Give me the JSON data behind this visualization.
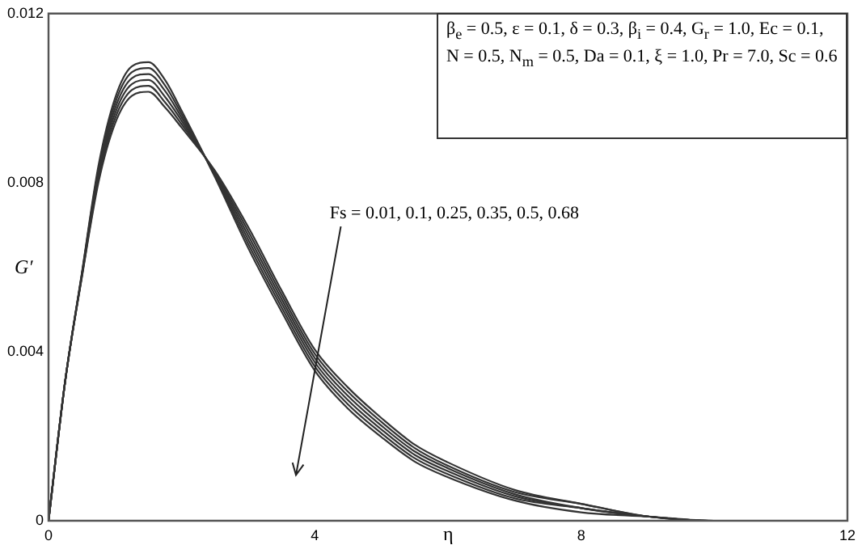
{
  "chart_data": {
    "type": "line",
    "xlabel": "η",
    "ylabel": "G′",
    "xlim": [
      0,
      12
    ],
    "xticks": [
      0,
      4,
      8,
      12
    ],
    "ylim": [
      0,
      0.012
    ],
    "yticks": [
      0,
      0.004,
      0.008,
      0.012
    ],
    "grid": false,
    "legend": false,
    "marker": "none",
    "line_style": "solid",
    "series": [
      {
        "color": "#333333",
        "x": [
          0,
          0.25,
          0.5,
          0.75,
          1,
          1.25,
          1.5,
          1.75,
          2,
          2.5,
          3,
          3.5,
          4,
          4.5,
          5,
          5.5,
          6,
          7,
          8,
          9,
          10,
          11.5
        ],
        "values": [
          0,
          0.0033,
          0.00575,
          0.008,
          0.0094,
          0.01005,
          0.01015,
          0.00978,
          0.0093,
          0.00828,
          0.00695,
          0.00545,
          0.00405,
          0.00315,
          0.00243,
          0.0018,
          0.00138,
          0.00073,
          0.0004,
          0.0001,
          0,
          0
        ]
      },
      {
        "color": "#333333",
        "x": [
          0,
          0.25,
          0.5,
          0.75,
          1,
          1.25,
          1.5,
          1.75,
          2,
          2.5,
          3,
          3.5,
          4,
          4.5,
          5,
          5.5,
          6,
          7,
          8,
          9,
          10,
          11.4
        ],
        "values": [
          0,
          0.0033,
          0.00577,
          0.00808,
          0.00952,
          0.01019,
          0.01029,
          0.0099,
          0.00938,
          0.00825,
          0.00685,
          0.00535,
          0.00395,
          0.00305,
          0.00234,
          0.00172,
          0.0013,
          0.00068,
          0.0004,
          0.0001,
          0,
          0
        ]
      },
      {
        "color": "#333333",
        "x": [
          0,
          0.25,
          0.5,
          0.75,
          1,
          1.25,
          1.5,
          1.75,
          2,
          2.5,
          3,
          3.5,
          4,
          4.5,
          5,
          5.5,
          6,
          7,
          8,
          9,
          10,
          11.3
        ],
        "values": [
          0,
          0.0033,
          0.00579,
          0.00816,
          0.00964,
          0.01033,
          0.01043,
          0.01003,
          0.00946,
          0.00822,
          0.00675,
          0.00525,
          0.00385,
          0.00295,
          0.00225,
          0.00164,
          0.00124,
          0.00063,
          0.0003,
          0.0001,
          0,
          0
        ]
      },
      {
        "color": "#333333",
        "x": [
          0,
          0.25,
          0.5,
          0.75,
          1,
          1.25,
          1.5,
          1.75,
          2,
          2.5,
          3,
          3.5,
          4,
          4.5,
          5,
          5.5,
          6,
          7,
          8,
          9,
          10,
          11.2
        ],
        "values": [
          0,
          0.0033,
          0.00581,
          0.00824,
          0.00976,
          0.01047,
          0.01057,
          0.01017,
          0.00954,
          0.00819,
          0.00665,
          0.00515,
          0.00375,
          0.00285,
          0.00216,
          0.00156,
          0.00117,
          0.00058,
          0.0003,
          0.0001,
          0,
          0
        ]
      },
      {
        "color": "#333333",
        "x": [
          0,
          0.25,
          0.5,
          0.75,
          1,
          1.25,
          1.5,
          1.75,
          2,
          2.5,
          3,
          3.5,
          4,
          4.5,
          5,
          5.5,
          6,
          7,
          8,
          9,
          10,
          11.1
        ],
        "values": [
          0,
          0.0033,
          0.00583,
          0.00832,
          0.00988,
          0.01061,
          0.01071,
          0.0103,
          0.00962,
          0.00816,
          0.00655,
          0.00505,
          0.00365,
          0.00275,
          0.00207,
          0.00148,
          0.0011,
          0.00053,
          0.0003,
          0.0001,
          0,
          0
        ]
      },
      {
        "color": "#333333",
        "x": [
          0,
          0.25,
          0.5,
          0.75,
          1,
          1.25,
          1.5,
          1.75,
          2,
          2.5,
          3,
          3.5,
          4,
          4.5,
          5,
          5.5,
          6,
          7,
          8,
          9,
          10,
          11.0
        ],
        "values": [
          0,
          0.0033,
          0.00585,
          0.0084,
          0.01,
          0.01075,
          0.01085,
          0.01043,
          0.0097,
          0.00813,
          0.00645,
          0.00495,
          0.00355,
          0.00265,
          0.00198,
          0.0014,
          0.00103,
          0.00048,
          0.0002,
          0.0001,
          0,
          0
        ]
      }
    ],
    "annotations": [
      "β$_{e}$ = 0.5, ε = 0.1, δ = 0.3, β$_{i}$ = 0.4, G$_{r}$ = 1.0, Ec = 0.1,",
      "N = 0.5, N$_{m}$ = 0.5, Da = 0.1, ξ = 1.0, Pr = 7.0, Sc = 0.6",
      "Fs = 0.01, 0.1, 0.25, 0.35, 0.5, 0.68"
    ]
  }
}
